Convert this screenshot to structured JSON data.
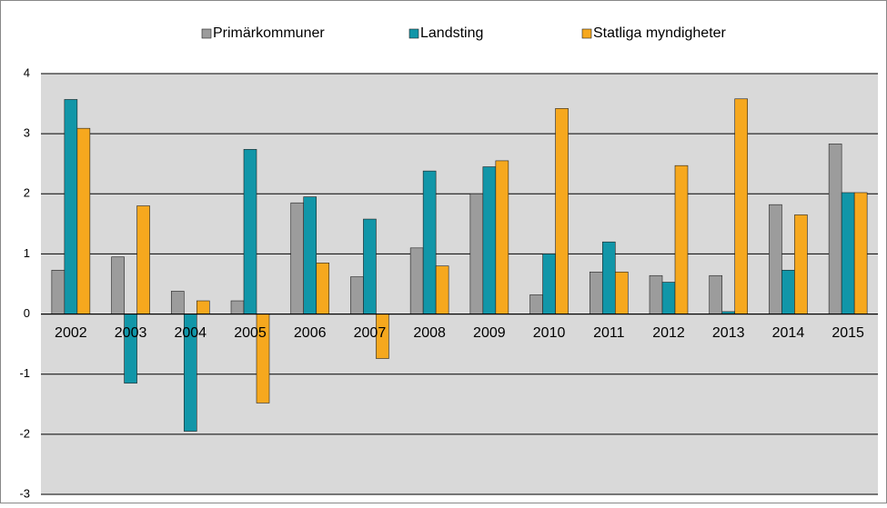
{
  "chart_data": {
    "type": "bar",
    "categories": [
      "2002",
      "2003",
      "2004",
      "2005",
      "2006",
      "2007",
      "2008",
      "2009",
      "2010",
      "2011",
      "2012",
      "2013",
      "2014",
      "2015"
    ],
    "series": [
      {
        "name": "Primärkommuner",
        "color": "#9c9c9c",
        "values": [
          0.73,
          0.95,
          0.38,
          0.22,
          1.85,
          0.62,
          1.1,
          2.0,
          0.32,
          0.7,
          0.64,
          0.64,
          1.82,
          2.83
        ]
      },
      {
        "name": "Landsting",
        "color": "#1196a8",
        "values": [
          3.57,
          -1.15,
          -1.95,
          2.74,
          1.95,
          1.58,
          2.38,
          2.45,
          1.0,
          1.2,
          0.53,
          0.04,
          0.73,
          2.02
        ]
      },
      {
        "name": "Statliga myndigheter",
        "color": "#f6a81e",
        "values": [
          3.09,
          1.8,
          0.22,
          -1.48,
          0.85,
          -0.74,
          0.8,
          2.55,
          3.42,
          0.7,
          2.47,
          3.58,
          1.65,
          2.02
        ]
      }
    ],
    "ylim": [
      -3,
      4
    ],
    "yticks": [
      -3,
      -2,
      -1,
      0,
      1,
      2,
      3,
      4
    ],
    "grid": true,
    "legend": "top"
  }
}
